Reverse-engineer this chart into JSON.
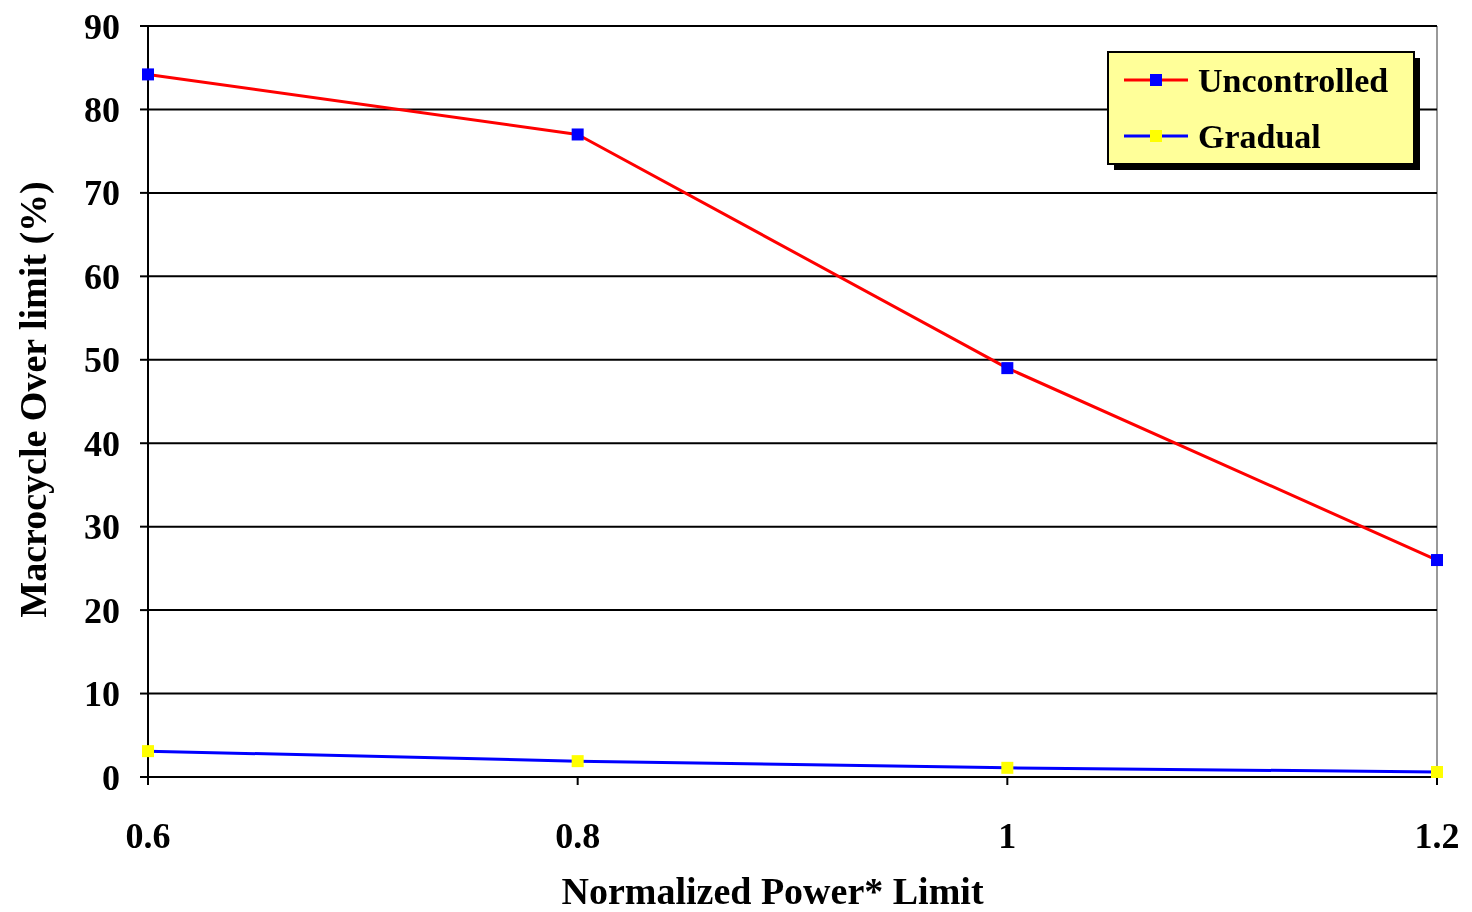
{
  "chart_data": {
    "type": "line",
    "xlabel": "Normalized Power*  Limit",
    "ylabel": "Macrocycle Over limit (%)",
    "x": [
      0.6,
      0.8,
      1,
      1.2
    ],
    "series": [
      {
        "name": "Uncontrolled",
        "color": "#ff0000",
        "colors": [
          "#0000ff",
          "#0000ff",
          "#0000ff",
          "#0000ff"
        ],
        "values": [
          84.2,
          77,
          49,
          26
        ]
      },
      {
        "name": "Gradual",
        "color": "#0000ff",
        "colors": [
          "#ffff00",
          "#ffff00",
          "#ffff00",
          "#ffff00"
        ],
        "values": [
          3.1,
          1.9,
          1.1,
          0.6
        ]
      }
    ],
    "xlim": [
      0.6,
      1.2
    ],
    "xticks": [
      0.6,
      0.8,
      1,
      1.2
    ],
    "ylim": [
      0,
      90
    ],
    "yticks": [
      0,
      10,
      20,
      30,
      40,
      50,
      60,
      70,
      80,
      90
    ],
    "grid": "y",
    "legend": "top right",
    "marker": "square",
    "line_style": "solid"
  }
}
